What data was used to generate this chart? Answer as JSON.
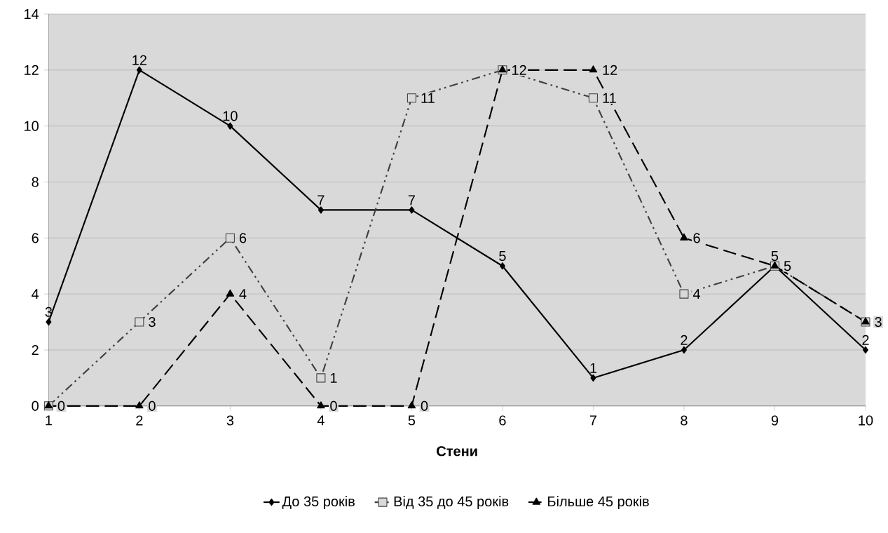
{
  "chart_data": {
    "type": "line",
    "xlabel": "Стени",
    "categories": [
      "1",
      "2",
      "3",
      "4",
      "5",
      "6",
      "7",
      "8",
      "9",
      "10"
    ],
    "series": [
      {
        "name": "До 35 років",
        "color": "#000000",
        "marker": "diamond",
        "line_style": "solid",
        "values": [
          3,
          12,
          10,
          7,
          7,
          5,
          1,
          2,
          5,
          2
        ],
        "value_labels": [
          "3",
          "12",
          "10",
          "7",
          "7",
          "5",
          "1",
          "2",
          "5",
          "2"
        ]
      },
      {
        "name": "Від 35 до 45 років",
        "color": "#404040",
        "marker": "square",
        "line_style": "dashdotdot",
        "values": [
          0,
          3,
          6,
          1,
          11,
          12,
          11,
          4,
          5,
          3
        ],
        "value_labels": [
          null,
          "3",
          "6",
          "1",
          "11",
          null,
          "11",
          "4",
          null,
          null
        ]
      },
      {
        "name": "Більше 45 років",
        "color": "#000000",
        "marker": "triangle",
        "line_style": "dashed",
        "values": [
          0,
          0,
          4,
          0,
          0,
          12,
          12,
          6,
          5,
          3
        ],
        "value_labels": [
          "0",
          "0",
          "4",
          "0",
          "0",
          "12",
          "12",
          "6",
          "5",
          "3"
        ]
      }
    ],
    "ylim": [
      0,
      14
    ],
    "yticks": [
      0,
      2,
      4,
      6,
      8,
      10,
      12,
      14
    ],
    "grid": "y",
    "legend": "bottom"
  }
}
